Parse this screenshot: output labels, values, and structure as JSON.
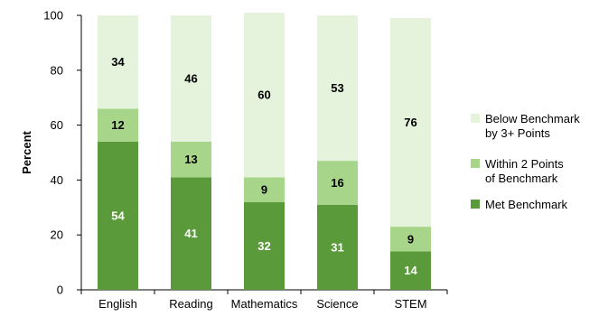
{
  "chart_data": {
    "type": "bar",
    "stacked": true,
    "categories": [
      "English",
      "Reading",
      "Mathematics",
      "Science",
      "STEM"
    ],
    "series": [
      {
        "name": "Met Benchmark",
        "values": [
          54,
          41,
          32,
          31,
          14
        ],
        "color": "#5a9a3a",
        "label_color": "#ffffff"
      },
      {
        "name": "Within 2 Points of Benchmark",
        "values": [
          12,
          13,
          9,
          16,
          9
        ],
        "color": "#a7d68b",
        "label_color": "#000000"
      },
      {
        "name": "Below Benchmark by 3+ Points",
        "values": [
          34,
          46,
          60,
          53,
          76
        ],
        "color": "#e5f2dc",
        "label_color": "#000000"
      }
    ],
    "legend": [
      {
        "name": "Below Benchmark by 3+ Points",
        "lines": [
          "Below Benchmark",
          "by 3+ Points"
        ],
        "color": "#e5f2dc"
      },
      {
        "name": "Within 2 Points of Benchmark",
        "lines": [
          "Within 2 Points",
          "of Benchmark"
        ],
        "color": "#a7d68b"
      },
      {
        "name": "Met Benchmark",
        "lines": [
          "Met Benchmark"
        ],
        "color": "#5a9a3a"
      }
    ],
    "legend_position": "right",
    "ylabel": "Percent",
    "xlabel": "",
    "title": "",
    "ylim": [
      0,
      100
    ],
    "yticks": [
      0,
      20,
      40,
      60,
      80,
      100
    ],
    "grid": false
  }
}
